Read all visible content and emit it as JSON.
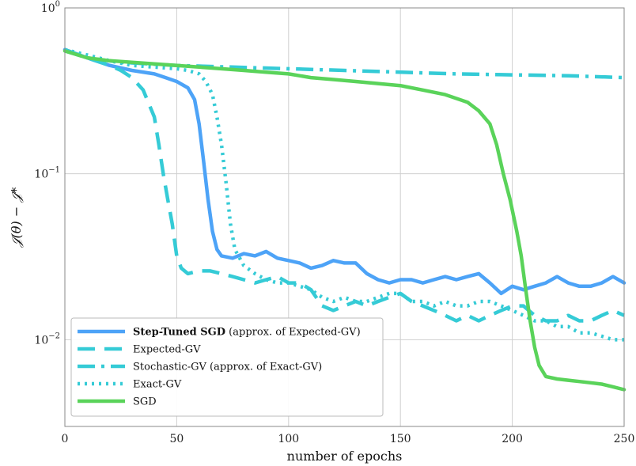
{
  "chart_data": {
    "type": "line",
    "xlabel": "number of epochs",
    "ylabel": "𝒥(θ) − 𝒥*",
    "xlim": [
      0,
      250
    ],
    "ylim": [
      0.003,
      1.0
    ],
    "yscale": "log",
    "grid": true,
    "legend_position": "bottom-left",
    "x_ticks": [
      {
        "value": 0,
        "label": "0"
      },
      {
        "value": 50,
        "label": "50"
      },
      {
        "value": 100,
        "label": "100"
      },
      {
        "value": 150,
        "label": "150"
      },
      {
        "value": 200,
        "label": "200"
      },
      {
        "value": 250,
        "label": "250"
      }
    ],
    "y_ticks": [
      {
        "value": 1.0,
        "base": "10",
        "exp": "0"
      },
      {
        "value": 0.1,
        "base": "10",
        "exp": "−1"
      },
      {
        "value": 0.01,
        "base": "10",
        "exp": "−2"
      }
    ],
    "series": [
      {
        "key": "step_tuned_sgd",
        "legend_bold": "Step-Tuned SGD",
        "legend_rest": " (approx. of Expected-GV)",
        "color": "#4da3f7",
        "dash": "",
        "points": [
          [
            0,
            0.56
          ],
          [
            10,
            0.5
          ],
          [
            20,
            0.45
          ],
          [
            30,
            0.42
          ],
          [
            40,
            0.4
          ],
          [
            45,
            0.38
          ],
          [
            50,
            0.36
          ],
          [
            55,
            0.33
          ],
          [
            58,
            0.28
          ],
          [
            60,
            0.2
          ],
          [
            62,
            0.12
          ],
          [
            64,
            0.07
          ],
          [
            66,
            0.045
          ],
          [
            68,
            0.035
          ],
          [
            70,
            0.032
          ],
          [
            75,
            0.031
          ],
          [
            80,
            0.033
          ],
          [
            85,
            0.032
          ],
          [
            90,
            0.034
          ],
          [
            95,
            0.031
          ],
          [
            100,
            0.03
          ],
          [
            105,
            0.029
          ],
          [
            110,
            0.027
          ],
          [
            115,
            0.028
          ],
          [
            120,
            0.03
          ],
          [
            125,
            0.029
          ],
          [
            130,
            0.029
          ],
          [
            135,
            0.025
          ],
          [
            140,
            0.023
          ],
          [
            145,
            0.022
          ],
          [
            150,
            0.023
          ],
          [
            155,
            0.023
          ],
          [
            160,
            0.022
          ],
          [
            165,
            0.023
          ],
          [
            170,
            0.024
          ],
          [
            175,
            0.023
          ],
          [
            180,
            0.024
          ],
          [
            185,
            0.025
          ],
          [
            190,
            0.022
          ],
          [
            195,
            0.019
          ],
          [
            200,
            0.021
          ],
          [
            205,
            0.02
          ],
          [
            210,
            0.021
          ],
          [
            215,
            0.022
          ],
          [
            220,
            0.024
          ],
          [
            225,
            0.022
          ],
          [
            230,
            0.021
          ],
          [
            235,
            0.021
          ],
          [
            240,
            0.022
          ],
          [
            245,
            0.024
          ],
          [
            250,
            0.022
          ]
        ]
      },
      {
        "key": "expected_gv",
        "legend_bold": "",
        "legend_rest": "Expected-GV",
        "color": "#35cbd6",
        "dash": "22,12",
        "points": [
          [
            0,
            0.56
          ],
          [
            10,
            0.5
          ],
          [
            20,
            0.45
          ],
          [
            25,
            0.42
          ],
          [
            30,
            0.38
          ],
          [
            35,
            0.32
          ],
          [
            40,
            0.22
          ],
          [
            42,
            0.15
          ],
          [
            44,
            0.1
          ],
          [
            46,
            0.07
          ],
          [
            48,
            0.05
          ],
          [
            50,
            0.032
          ],
          [
            52,
            0.027
          ],
          [
            55,
            0.025
          ],
          [
            60,
            0.026
          ],
          [
            65,
            0.026
          ],
          [
            70,
            0.025
          ],
          [
            75,
            0.024
          ],
          [
            80,
            0.023
          ],
          [
            85,
            0.022
          ],
          [
            90,
            0.023
          ],
          [
            95,
            0.024
          ],
          [
            100,
            0.022
          ],
          [
            105,
            0.022
          ],
          [
            110,
            0.02
          ],
          [
            115,
            0.016
          ],
          [
            120,
            0.015
          ],
          [
            125,
            0.016
          ],
          [
            130,
            0.017
          ],
          [
            135,
            0.016
          ],
          [
            140,
            0.017
          ],
          [
            145,
            0.018
          ],
          [
            150,
            0.019
          ],
          [
            155,
            0.017
          ],
          [
            160,
            0.016
          ],
          [
            165,
            0.015
          ],
          [
            170,
            0.014
          ],
          [
            175,
            0.013
          ],
          [
            180,
            0.014
          ],
          [
            185,
            0.013
          ],
          [
            190,
            0.014
          ],
          [
            195,
            0.015
          ],
          [
            200,
            0.016
          ],
          [
            205,
            0.016
          ],
          [
            210,
            0.014
          ],
          [
            215,
            0.013
          ],
          [
            220,
            0.013
          ],
          [
            225,
            0.014
          ],
          [
            230,
            0.013
          ],
          [
            235,
            0.013
          ],
          [
            240,
            0.014
          ],
          [
            245,
            0.015
          ],
          [
            250,
            0.014
          ]
        ]
      },
      {
        "key": "stochastic_gv",
        "legend_bold": "",
        "legend_rest": "Stochastic-GV (approx. of Exact-GV)",
        "color": "#35cbd6",
        "dash": "22,8,4,8",
        "points": [
          [
            0,
            0.55
          ],
          [
            10,
            0.5
          ],
          [
            25,
            0.47
          ],
          [
            50,
            0.45
          ],
          [
            75,
            0.44
          ],
          [
            100,
            0.43
          ],
          [
            125,
            0.42
          ],
          [
            150,
            0.41
          ],
          [
            175,
            0.4
          ],
          [
            200,
            0.395
          ],
          [
            225,
            0.39
          ],
          [
            250,
            0.38
          ]
        ]
      },
      {
        "key": "exact_gv",
        "legend_bold": "",
        "legend_rest": "Exact-GV",
        "color": "#35cbd6",
        "dash": "3,6",
        "points": [
          [
            0,
            0.56
          ],
          [
            10,
            0.52
          ],
          [
            20,
            0.48
          ],
          [
            30,
            0.45
          ],
          [
            40,
            0.44
          ],
          [
            50,
            0.43
          ],
          [
            55,
            0.42
          ],
          [
            60,
            0.4
          ],
          [
            63,
            0.36
          ],
          [
            66,
            0.3
          ],
          [
            68,
            0.22
          ],
          [
            70,
            0.15
          ],
          [
            72,
            0.09
          ],
          [
            74,
            0.05
          ],
          [
            76,
            0.035
          ],
          [
            80,
            0.028
          ],
          [
            85,
            0.025
          ],
          [
            90,
            0.023
          ],
          [
            95,
            0.022
          ],
          [
            100,
            0.022
          ],
          [
            105,
            0.021
          ],
          [
            110,
            0.02
          ],
          [
            115,
            0.018
          ],
          [
            120,
            0.017
          ],
          [
            125,
            0.018
          ],
          [
            130,
            0.017
          ],
          [
            135,
            0.017
          ],
          [
            140,
            0.018
          ],
          [
            145,
            0.019
          ],
          [
            150,
            0.019
          ],
          [
            155,
            0.017
          ],
          [
            160,
            0.017
          ],
          [
            165,
            0.016
          ],
          [
            170,
            0.017
          ],
          [
            175,
            0.016
          ],
          [
            180,
            0.016
          ],
          [
            185,
            0.017
          ],
          [
            190,
            0.017
          ],
          [
            195,
            0.016
          ],
          [
            200,
            0.015
          ],
          [
            205,
            0.014
          ],
          [
            210,
            0.013
          ],
          [
            215,
            0.013
          ],
          [
            220,
            0.012
          ],
          [
            225,
            0.012
          ],
          [
            230,
            0.011
          ],
          [
            235,
            0.011
          ],
          [
            240,
            0.0105
          ],
          [
            245,
            0.01
          ],
          [
            250,
            0.01
          ]
        ]
      },
      {
        "key": "sgd",
        "legend_bold": "",
        "legend_rest": "SGD",
        "color": "#5ad35a",
        "dash": "",
        "points": [
          [
            0,
            0.55
          ],
          [
            10,
            0.5
          ],
          [
            20,
            0.48
          ],
          [
            30,
            0.47
          ],
          [
            40,
            0.46
          ],
          [
            50,
            0.45
          ],
          [
            60,
            0.44
          ],
          [
            70,
            0.43
          ],
          [
            80,
            0.42
          ],
          [
            90,
            0.41
          ],
          [
            100,
            0.4
          ],
          [
            110,
            0.38
          ],
          [
            120,
            0.37
          ],
          [
            130,
            0.36
          ],
          [
            140,
            0.35
          ],
          [
            150,
            0.34
          ],
          [
            160,
            0.32
          ],
          [
            170,
            0.3
          ],
          [
            180,
            0.27
          ],
          [
            185,
            0.24
          ],
          [
            190,
            0.2
          ],
          [
            193,
            0.15
          ],
          [
            196,
            0.1
          ],
          [
            199,
            0.07
          ],
          [
            202,
            0.045
          ],
          [
            204,
            0.032
          ],
          [
            206,
            0.02
          ],
          [
            208,
            0.013
          ],
          [
            210,
            0.009
          ],
          [
            212,
            0.007
          ],
          [
            215,
            0.006
          ],
          [
            220,
            0.0058
          ],
          [
            225,
            0.0057
          ],
          [
            230,
            0.0056
          ],
          [
            235,
            0.0055
          ],
          [
            240,
            0.0054
          ],
          [
            245,
            0.0052
          ],
          [
            250,
            0.005
          ]
        ]
      }
    ]
  }
}
